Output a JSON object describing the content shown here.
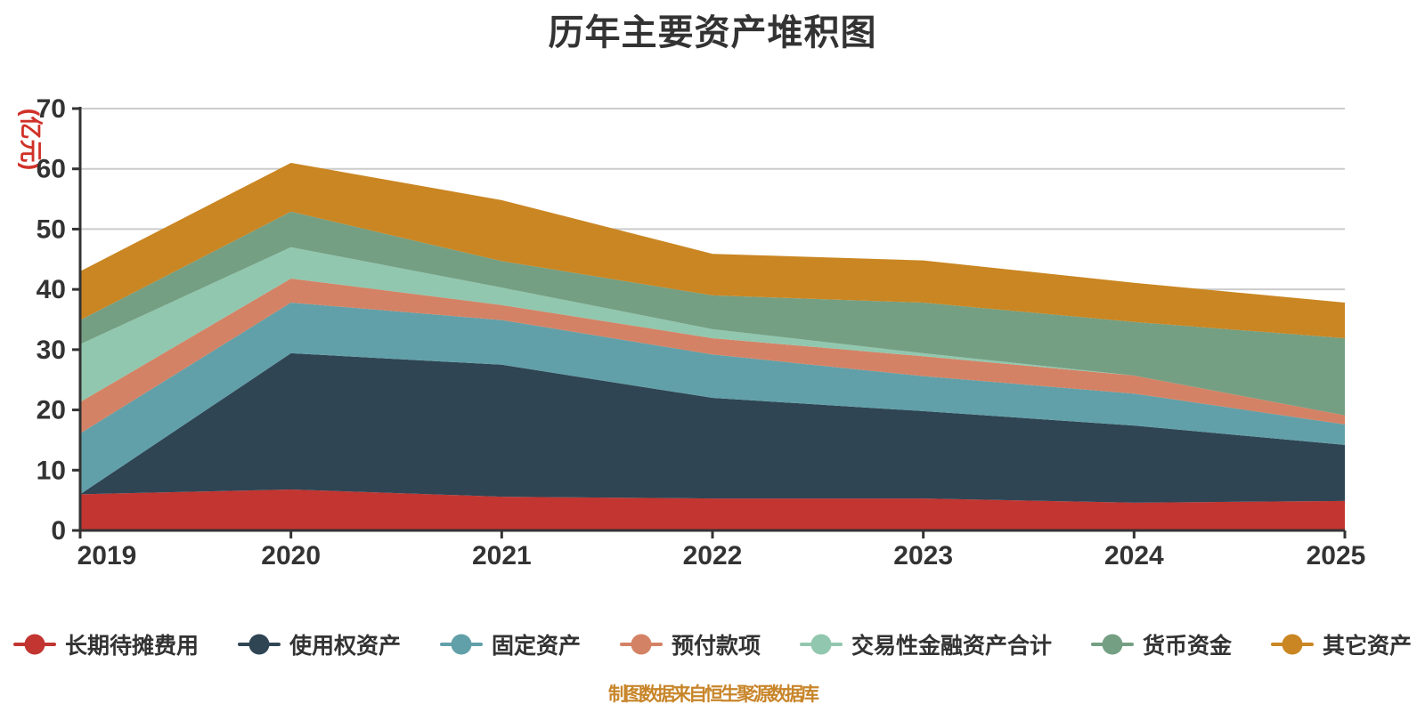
{
  "title": "历年主要资产堆积图",
  "y_axis_name": "(亿元)",
  "footer": "制图数据来自恒生聚源数据库",
  "colors": {
    "background": "#ffffff",
    "title_text": "#333333",
    "axis_line": "#333333",
    "axis_label": "#333333",
    "gridline": "#cccccc",
    "y_axis_name_text": "#d03128",
    "footer_text": "#c8862b"
  },
  "chart_data": {
    "type": "area",
    "stacked": true,
    "title": "历年主要资产堆积图",
    "ylabel": "(亿元)",
    "xlabel": "",
    "grid": true,
    "legend_position": "bottom",
    "ylim": [
      0,
      70
    ],
    "y_ticks": [
      0,
      10,
      20,
      30,
      40,
      50,
      60,
      70
    ],
    "categories": [
      "2019",
      "2020",
      "2021",
      "2022",
      "2023",
      "2024",
      "2025"
    ],
    "series": [
      {
        "name": "长期待摊费用",
        "color": "#c23531",
        "values": [
          6.0,
          6.8,
          5.6,
          5.3,
          5.3,
          4.6,
          4.9
        ]
      },
      {
        "name": "使用权资产",
        "color": "#2f4554",
        "values": [
          0.0,
          22.6,
          21.9,
          16.7,
          14.5,
          12.8,
          9.3
        ]
      },
      {
        "name": "固定资产",
        "color": "#61a0a8",
        "values": [
          10.1,
          8.4,
          7.4,
          7.2,
          5.8,
          5.3,
          3.4
        ]
      },
      {
        "name": "预付款项",
        "color": "#d48265",
        "values": [
          5.2,
          4.0,
          2.5,
          2.7,
          3.3,
          3.0,
          1.5
        ]
      },
      {
        "name": "交易性金融资产合计",
        "color": "#91c7ae",
        "values": [
          9.6,
          5.2,
          2.9,
          1.5,
          0.5,
          0.0,
          0.0
        ]
      },
      {
        "name": "货币资金",
        "color": "#749f83",
        "values": [
          4.0,
          5.9,
          4.4,
          5.6,
          8.4,
          8.9,
          12.8
        ]
      },
      {
        "name": "其它资产",
        "color": "#ca8622",
        "values": [
          8.1,
          8.1,
          10.1,
          6.9,
          7.0,
          6.5,
          5.9
        ]
      }
    ]
  }
}
